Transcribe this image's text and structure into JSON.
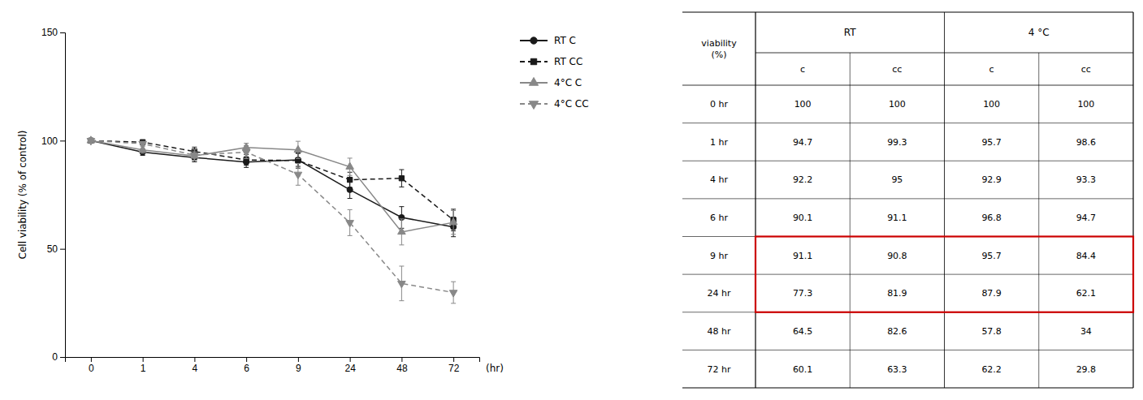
{
  "chart_data": [
    {
      "type": "line",
      "categories": [
        "0",
        "1",
        "4",
        "6",
        "9",
        "24",
        "48",
        "72"
      ],
      "series": [
        {
          "name": "RT C",
          "color": "#1a1a1a",
          "line_style": "solid",
          "marker": "circle",
          "values": [
            100,
            94.7,
            92.2,
            90.1,
            91.1,
            77.3,
            64.5,
            60.1
          ],
          "errors": [
            0.5,
            1.5,
            2.0,
            2.5,
            3.0,
            4.0,
            5.0,
            4.5
          ]
        },
        {
          "name": "RT CC",
          "color": "#1a1a1a",
          "line_style": "dashed",
          "marker": "square",
          "values": [
            100,
            99.3,
            95.0,
            91.1,
            90.8,
            81.9,
            82.6,
            63.3
          ],
          "errors": [
            0.5,
            1.0,
            2.0,
            2.5,
            3.5,
            3.5,
            4.0,
            5.0
          ]
        },
        {
          "name": "4°C C",
          "color": "#888888",
          "line_style": "solid",
          "marker": "triangle-up",
          "values": [
            100,
            95.7,
            92.9,
            96.8,
            95.7,
            87.9,
            57.8,
            62.2
          ],
          "errors": [
            0.5,
            1.5,
            2.0,
            2.0,
            4.0,
            4.0,
            6.0,
            5.5
          ]
        },
        {
          "name": "4°C CC",
          "color": "#888888",
          "line_style": "dashed",
          "marker": "triangle-down",
          "values": [
            100,
            98.6,
            93.3,
            94.7,
            84.4,
            62.1,
            34.0,
            29.8
          ],
          "errors": [
            0.5,
            1.0,
            2.5,
            3.0,
            5.0,
            6.0,
            8.0,
            5.0
          ]
        }
      ],
      "y_label": "Cell viability (% of control)",
      "x_label": "(hr)",
      "ylim": [
        0,
        150
      ],
      "yticks": [
        0,
        50,
        100,
        150
      ],
      "grid": false,
      "legend": "right"
    },
    {
      "type": "table",
      "row_header": "viability\n(%)",
      "column_groups": [
        "RT",
        "4 °C"
      ],
      "columns": [
        "c",
        "cc",
        "c",
        "cc"
      ],
      "categories": [
        "0 hr",
        "1 hr",
        "4 hr",
        "6 hr",
        "9 hr",
        "24 hr",
        "48 hr",
        "72 hr"
      ],
      "values": [
        [
          100,
          100,
          100,
          100
        ],
        [
          94.7,
          99.3,
          95.7,
          98.6
        ],
        [
          92.2,
          95.0,
          92.9,
          93.3
        ],
        [
          90.1,
          91.1,
          96.8,
          94.7
        ],
        [
          91.1,
          90.8,
          95.7,
          84.4
        ],
        [
          77.3,
          81.9,
          87.9,
          62.1
        ],
        [
          64.5,
          82.6,
          57.8,
          34.0
        ],
        [
          60.1,
          63.3,
          62.2,
          29.8
        ]
      ],
      "highlight_rows": [
        4,
        5
      ],
      "color": "#cc0000"
    }
  ]
}
